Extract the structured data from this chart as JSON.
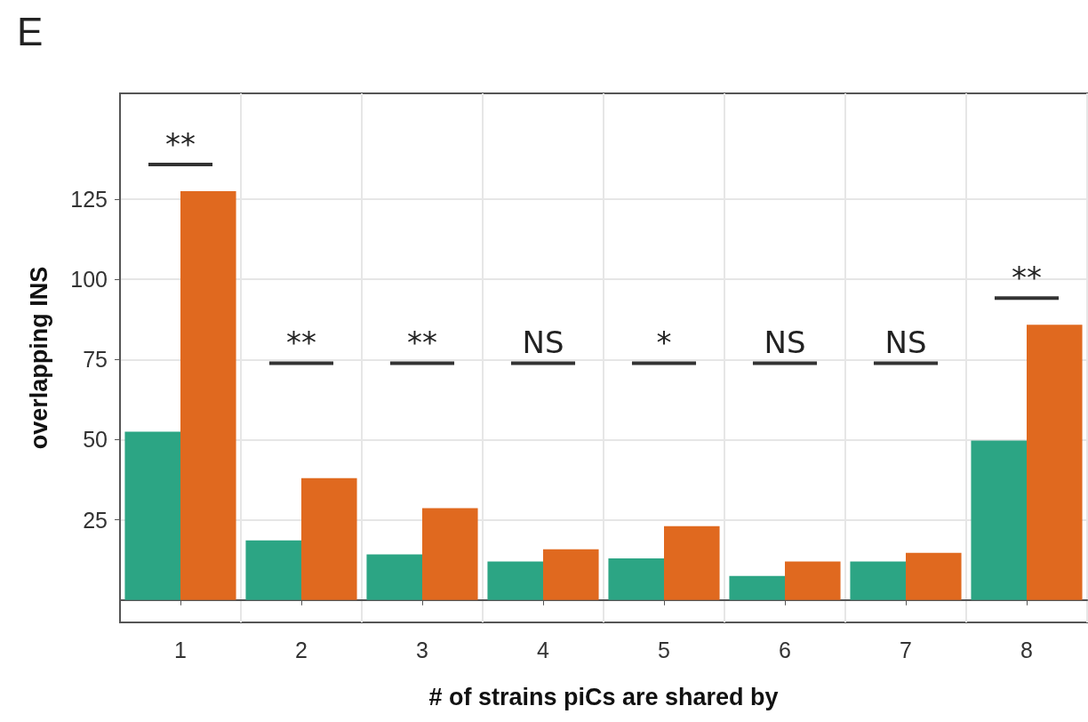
{
  "chart_data": {
    "type": "bar",
    "title": "E",
    "xlabel": "# of strains piCs are shared by",
    "ylabel": "overlapping INS",
    "categories": [
      "1",
      "2",
      "3",
      "4",
      "5",
      "6",
      "7",
      "8"
    ],
    "series": [
      {
        "color": "#2ca584",
        "values": [
          52.5,
          18.6,
          14.2,
          12,
          13,
          7.5,
          12,
          49.7
        ]
      },
      {
        "color": "#e0691f",
        "values": [
          127.5,
          38,
          28.6,
          15.8,
          23,
          12,
          14.7,
          85.8
        ]
      }
    ],
    "ylim": [
      -7,
      158
    ],
    "yticks": [
      25,
      50,
      75,
      100,
      125
    ],
    "grid": true,
    "annotations": [
      "**",
      "**",
      "**",
      "NS",
      "*",
      "NS",
      "NS",
      "**"
    ]
  }
}
